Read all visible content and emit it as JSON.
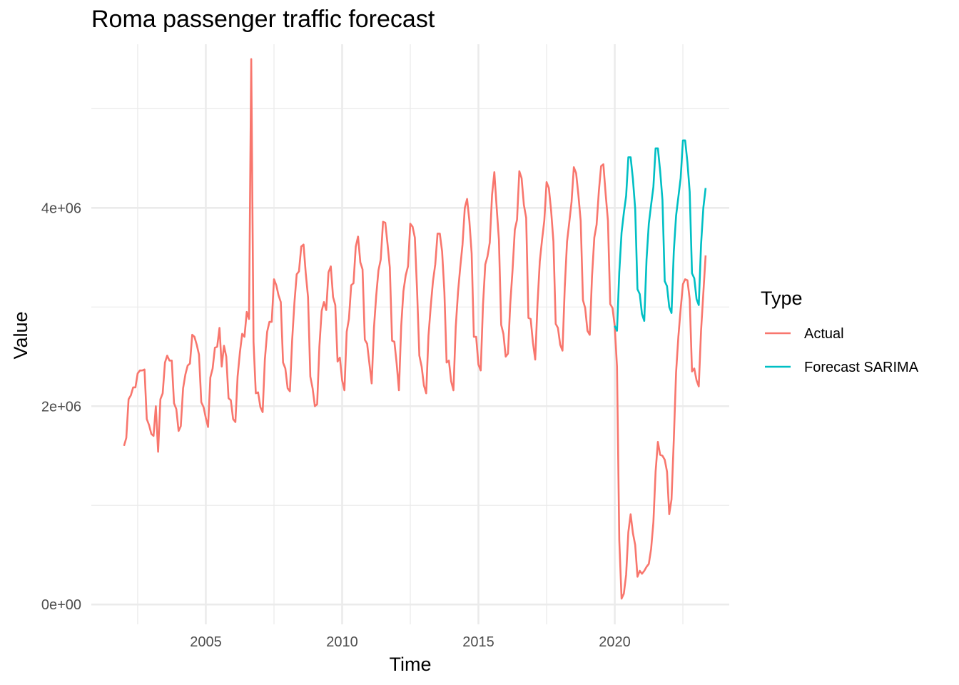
{
  "chart_data": {
    "type": "line",
    "title": "Roma passenger traffic forecast",
    "xlabel": "Time",
    "ylabel": "Value",
    "xlim": [
      2000.8,
      2024.2
    ],
    "ylim": [
      -200000,
      5650000
    ],
    "x_ticks": [
      {
        "value": 2005,
        "label": "2005"
      },
      {
        "value": 2010,
        "label": "2010"
      },
      {
        "value": 2015,
        "label": "2015"
      },
      {
        "value": 2020,
        "label": "2020"
      }
    ],
    "x_minor_ticks": [
      2002.5,
      2007.5,
      2012.5,
      2017.5,
      2022.5
    ],
    "y_ticks": [
      {
        "value": 0,
        "label": "0e+00"
      },
      {
        "value": 2000000,
        "label": "2e+06"
      },
      {
        "value": 4000000,
        "label": "4e+06"
      }
    ],
    "y_minor_ticks": [
      1000000,
      3000000,
      5000000
    ],
    "grid": true,
    "legend": {
      "title": "Type",
      "position": "right",
      "entries": [
        {
          "label": "Actual",
          "color": "#F8766D"
        },
        {
          "label": "Forecast SARIMA",
          "color": "#00BFC4"
        }
      ]
    },
    "series": [
      {
        "name": "Actual",
        "color": "#F8766D",
        "start": "2002-01",
        "values": [
          1600000,
          1680000,
          2070000,
          2110000,
          2190000,
          2190000,
          2330000,
          2360000,
          2360000,
          2370000,
          1870000,
          1810000,
          1720000,
          1700000,
          2000000,
          1540000,
          2070000,
          2130000,
          2440000,
          2510000,
          2460000,
          2460000,
          2030000,
          1970000,
          1750000,
          1800000,
          2180000,
          2320000,
          2410000,
          2430000,
          2720000,
          2700000,
          2620000,
          2520000,
          2040000,
          1990000,
          1880000,
          1790000,
          2290000,
          2380000,
          2590000,
          2600000,
          2790000,
          2400000,
          2610000,
          2500000,
          2080000,
          2060000,
          1870000,
          1840000,
          2300000,
          2540000,
          2730000,
          2700000,
          2950000,
          2880000,
          5500000,
          2650000,
          2130000,
          2140000,
          1990000,
          1940000,
          2470000,
          2750000,
          2850000,
          2850000,
          3280000,
          3220000,
          3120000,
          3050000,
          2440000,
          2380000,
          2180000,
          2150000,
          2660000,
          3040000,
          3330000,
          3360000,
          3610000,
          3630000,
          3340000,
          3100000,
          2300000,
          2180000,
          2000000,
          2020000,
          2600000,
          2960000,
          3050000,
          2970000,
          3350000,
          3410000,
          3100000,
          3020000,
          2450000,
          2490000,
          2260000,
          2160000,
          2750000,
          2880000,
          3220000,
          3240000,
          3610000,
          3710000,
          3450000,
          3380000,
          2670000,
          2630000,
          2430000,
          2230000,
          2790000,
          3110000,
          3370000,
          3480000,
          3860000,
          3850000,
          3630000,
          3400000,
          2660000,
          2650000,
          2430000,
          2160000,
          2810000,
          3160000,
          3320000,
          3410000,
          3840000,
          3810000,
          3700000,
          3150000,
          2510000,
          2400000,
          2210000,
          2130000,
          2710000,
          3010000,
          3260000,
          3430000,
          3740000,
          3740000,
          3560000,
          3150000,
          2440000,
          2460000,
          2250000,
          2160000,
          2800000,
          3150000,
          3400000,
          3630000,
          4000000,
          4090000,
          3870000,
          3540000,
          2700000,
          2700000,
          2420000,
          2360000,
          3020000,
          3430000,
          3510000,
          3650000,
          4130000,
          4360000,
          4010000,
          3680000,
          2820000,
          2730000,
          2500000,
          2530000,
          3030000,
          3370000,
          3780000,
          3880000,
          4370000,
          4300000,
          4030000,
          3900000,
          2890000,
          2880000,
          2640000,
          2470000,
          3030000,
          3460000,
          3680000,
          3870000,
          4260000,
          4200000,
          3970000,
          3660000,
          2830000,
          2790000,
          2620000,
          2560000,
          3200000,
          3660000,
          3860000,
          4060000,
          4410000,
          4350000,
          4130000,
          3870000,
          3070000,
          2990000,
          2760000,
          2720000,
          3310000,
          3700000,
          3830000,
          4170000,
          4420000,
          4440000,
          4140000,
          3870000,
          3030000,
          2990000,
          2810000,
          2400000,
          650000,
          60000,
          110000,
          300000,
          730000,
          910000,
          720000,
          600000,
          280000,
          340000,
          310000,
          340000,
          380000,
          410000,
          560000,
          830000,
          1340000,
          1640000,
          1510000,
          1500000,
          1460000,
          1340000,
          910000,
          1060000,
          1660000,
          2340000,
          2700000,
          2980000,
          3230000,
          3280000,
          3270000,
          3080000,
          2350000,
          2380000,
          2260000,
          2200000,
          2760000,
          3140000,
          3520000
        ]
      },
      {
        "name": "Forecast SARIMA",
        "color": "#00BFC4",
        "start": "2020-01",
        "values": [
          2810000,
          2760000,
          3350000,
          3750000,
          3950000,
          4120000,
          4510000,
          4510000,
          4290000,
          3990000,
          3180000,
          3130000,
          2930000,
          2860000,
          3480000,
          3840000,
          4030000,
          4210000,
          4600000,
          4600000,
          4370000,
          4080000,
          3260000,
          3210000,
          3000000,
          2940000,
          3560000,
          3920000,
          4110000,
          4300000,
          4680000,
          4680000,
          4460000,
          4160000,
          3340000,
          3290000,
          3080000,
          3020000,
          3630000,
          4000000,
          4200000
        ]
      }
    ]
  }
}
